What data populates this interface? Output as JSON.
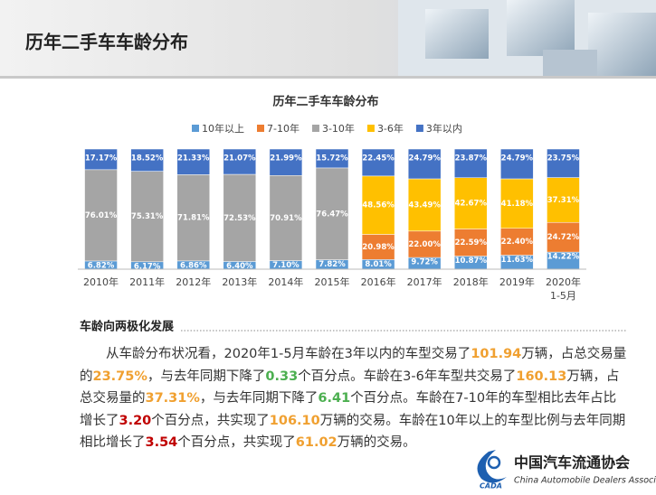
{
  "header": {
    "title": "历年二手车车龄分布"
  },
  "chart_data": {
    "type": "stacked_bar_100",
    "title": "历年二手车车龄分布",
    "categories": [
      "2010年",
      "2011年",
      "2012年",
      "2013年",
      "2014年",
      "2015年",
      "2016年",
      "2017年",
      "2018年",
      "2019年",
      "2020年\n1-5月"
    ],
    "series": [
      {
        "name": "10年以上",
        "color": "#5b9bd5",
        "values": [
          6.82,
          6.17,
          6.86,
          6.4,
          7.1,
          7.82,
          8.01,
          9.72,
          10.87,
          11.63,
          14.22
        ],
        "value_labels": [
          "6.82%",
          "6.17%",
          "6.86%",
          "6.40%",
          "7.10%",
          "7.82%",
          "8.01%",
          "9.72%",
          "10.87%",
          "11.63%",
          "14.22%"
        ]
      },
      {
        "name": "7-10年",
        "color": "#ed7d31",
        "values": [
          null,
          null,
          null,
          null,
          null,
          null,
          20.98,
          22.0,
          22.59,
          22.4,
          24.72
        ],
        "value_labels": [
          null,
          null,
          null,
          null,
          null,
          null,
          "20.98%",
          "22.00%",
          "22.59%",
          "22.40%",
          "24.72%"
        ]
      },
      {
        "name": "3-10年",
        "color": "#a5a5a5",
        "values": [
          76.01,
          75.31,
          71.81,
          72.53,
          70.91,
          76.47,
          null,
          null,
          null,
          null,
          null
        ],
        "value_labels": [
          "76.01%",
          "75.31%",
          "71.81%",
          "72.53%",
          "70.91%",
          "76.47%",
          null,
          null,
          null,
          null,
          null
        ]
      },
      {
        "name": "3-6年",
        "color": "#ffc000",
        "values": [
          null,
          null,
          null,
          null,
          null,
          null,
          48.56,
          43.49,
          42.67,
          41.18,
          37.31
        ],
        "value_labels": [
          null,
          null,
          null,
          null,
          null,
          null,
          "48.56%",
          "43.49%",
          "42.67%",
          "41.18%",
          "37.31%"
        ]
      },
      {
        "name": "3年以内",
        "color": "#4472c4",
        "values": [
          17.17,
          18.52,
          21.33,
          21.07,
          21.99,
          15.72,
          22.45,
          24.79,
          23.87,
          24.79,
          23.75
        ],
        "value_labels": [
          "17.17%",
          "18.52%",
          "21.33%",
          "21.07%",
          "21.99%",
          "15.72%",
          "22.45%",
          "24.79%",
          "23.87%",
          "24.79%",
          "23.75%"
        ]
      }
    ]
  },
  "summary": {
    "heading": "车龄向两极化发展",
    "paragraph": [
      {
        "text": "从车龄分布状况看，2020年1-5月车龄在3年以内的车型交易了"
      },
      {
        "text": "101.94",
        "color": "#f0a030"
      },
      {
        "text": "万辆，占总交易量的"
      },
      {
        "text": "23.75%",
        "color": "#f0a030"
      },
      {
        "text": "，与去年同期下降了"
      },
      {
        "text": "0.33",
        "color": "#4caf50"
      },
      {
        "text": "个百分点。车龄在3-6年车型共交易了"
      },
      {
        "text": "160.13",
        "color": "#f0a030"
      },
      {
        "text": "万辆，占总交易量的"
      },
      {
        "text": "37.31%",
        "color": "#f0a030"
      },
      {
        "text": "，与去年同期下降了"
      },
      {
        "text": "6.41",
        "color": "#4caf50"
      },
      {
        "text": "个百分点。车龄在7-10年的车型相比去年占比增长了"
      },
      {
        "text": "3.20",
        "color": "#c00000"
      },
      {
        "text": "个百分点，共实现了"
      },
      {
        "text": "106.10",
        "color": "#f0a030"
      },
      {
        "text": "万辆的交易。车龄在10年以上的车型比例与去年同期相比增长了"
      },
      {
        "text": "3.54",
        "color": "#c00000"
      },
      {
        "text": "个百分点，共实现了"
      },
      {
        "text": "61.02",
        "color": "#f0a030"
      },
      {
        "text": "万辆的交易。"
      }
    ]
  },
  "logo": {
    "name": "中国汽车流通协会",
    "english": "China Automobile Dealers Association",
    "abbr": "CADA"
  }
}
